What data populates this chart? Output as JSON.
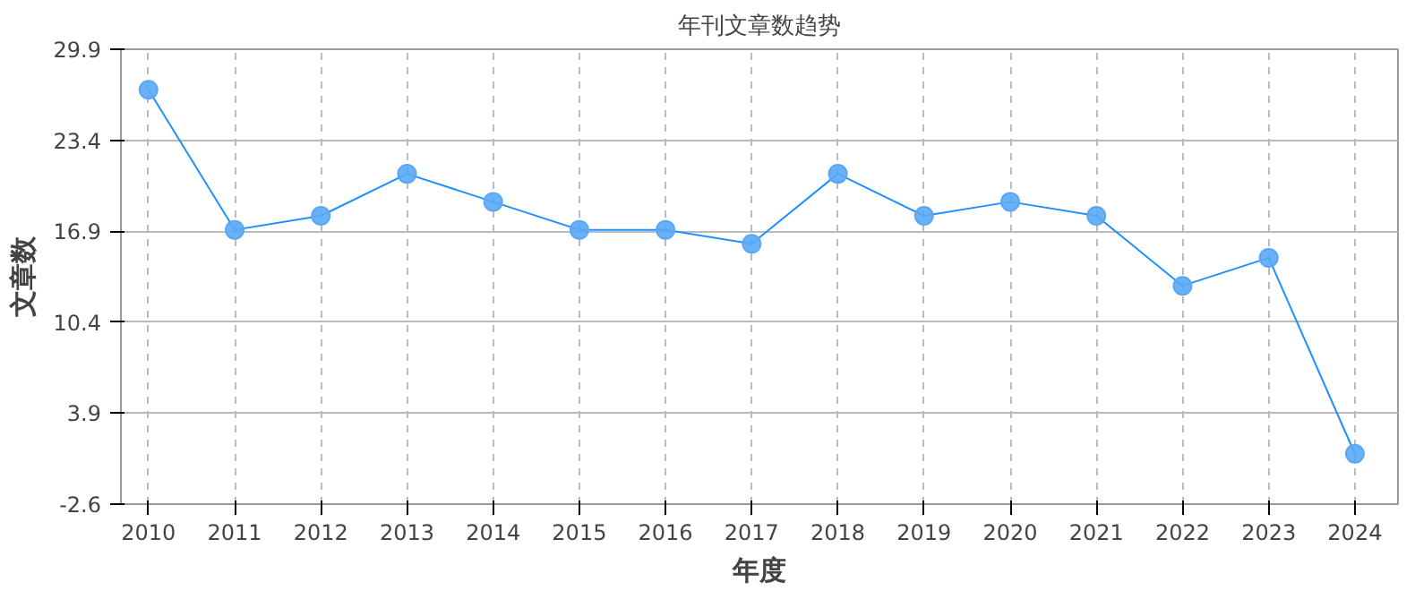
{
  "chart_data": {
    "type": "line",
    "title": "年刊文章数趋势",
    "xlabel": "年度",
    "ylabel": "文章数",
    "categories": [
      "2010",
      "2011",
      "2012",
      "2013",
      "2014",
      "2015",
      "2016",
      "2017",
      "2018",
      "2019",
      "2020",
      "2021",
      "2022",
      "2023",
      "2024"
    ],
    "series": [
      {
        "color": "#1e90ff",
        "values": [
          27,
          17,
          18,
          21,
          19,
          17,
          17,
          16,
          21,
          18,
          19,
          18,
          13,
          15,
          1
        ]
      }
    ],
    "ylim": [
      -2.6,
      29.9
    ],
    "yticks": [
      -2.6,
      3.9,
      10.4,
      16.9,
      23.4,
      29.9
    ],
    "grid": true,
    "marker": "circle",
    "line_style": "solid"
  }
}
